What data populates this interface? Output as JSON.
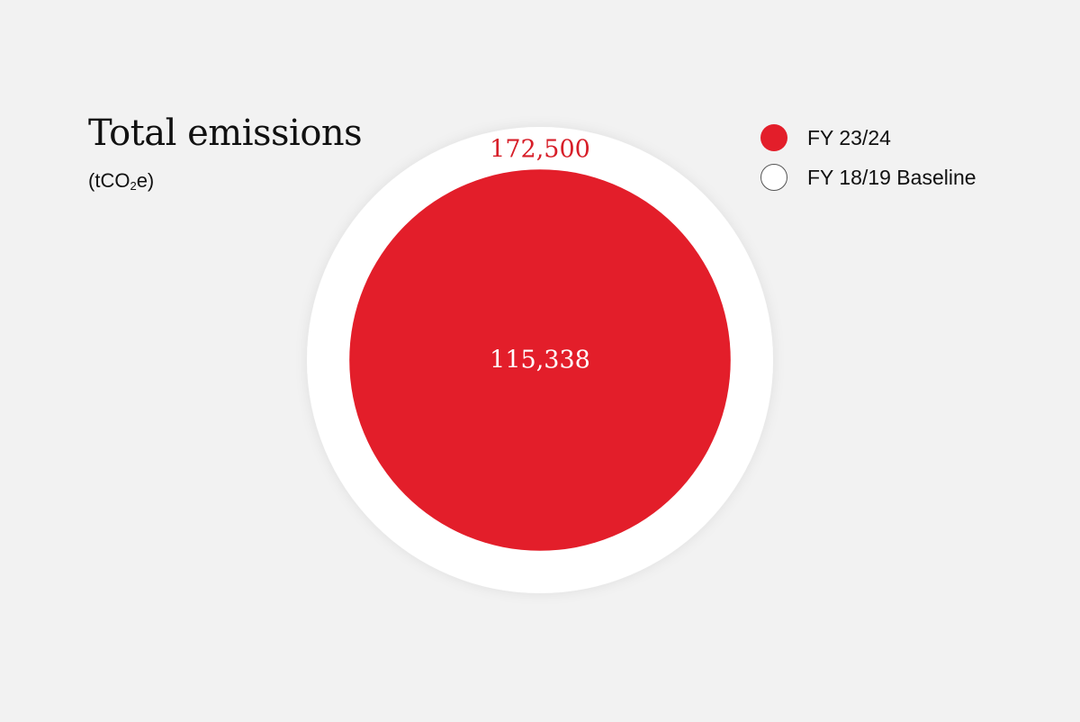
{
  "chart_data": {
    "type": "bubble",
    "title": "Total emissions",
    "unit": {
      "prefix": "(tCO",
      "sub": "2",
      "suffix": "e)"
    },
    "series": [
      {
        "name": "FY 18/19 Baseline",
        "value": 172500,
        "label": "172,500",
        "color": "#ffffff",
        "label_color": "#d71e28"
      },
      {
        "name": "FY 23/24",
        "value": 115338,
        "label": "115,338",
        "color": "#e31e2a",
        "label_color": "#ffffff"
      }
    ],
    "legend": {
      "placement": "top-right",
      "items": [
        {
          "name": "FY 23/24",
          "color": "#e31e2a"
        },
        {
          "name": "FY 18/19 Baseline",
          "color": "#ffffff"
        }
      ]
    }
  }
}
